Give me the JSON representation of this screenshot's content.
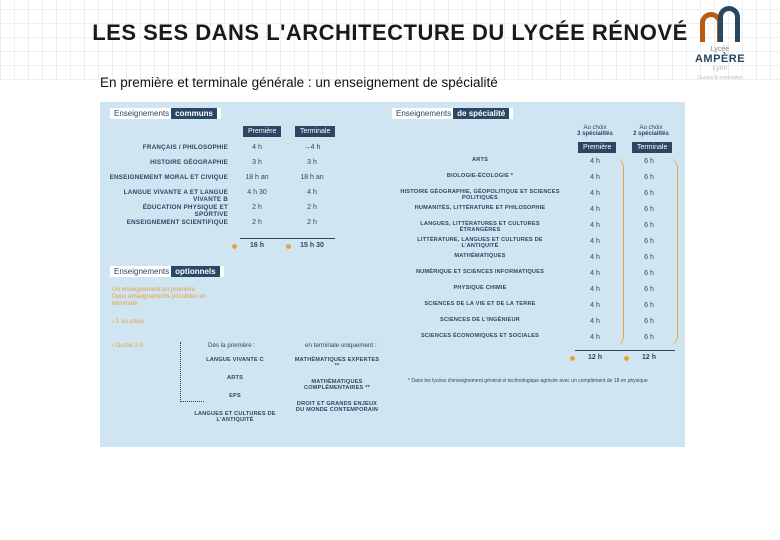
{
  "title": "LES SES DANS L'ARCHITECTURE DU LYCÉE RÉNOVÉ",
  "subtitle": "En première et terminale générale : un enseignement de spécialité",
  "logo": {
    "line1": "Lycée",
    "line2": "AMPÈRE",
    "line3": "Lyon",
    "line4": "Cursus & Innovation"
  },
  "labels": {
    "communs_a": "Enseignements",
    "communs_b": "communs",
    "spec_a": "Enseignements",
    "spec_b": "de spécialité",
    "opt_a": "Enseignements",
    "opt_b": "optionnels",
    "premiere": "Première",
    "terminale": "Terminale",
    "spec_head1a": "Au choix",
    "spec_head1b": "3 spécialités",
    "spec_head2a": "Au choix",
    "spec_head2b": "2 spécialités"
  },
  "communs": {
    "rows": [
      "FRANÇAIS / PHILOSOPHIE",
      "HISTOIRE GÉOGRAPHIE",
      "ENSEIGNEMENT MORAL ET CIVIQUE",
      "LANGUE VIVANTE A ET LANGUE VIVANTE B",
      "ÉDUCATION PHYSIQUE ET SPORTIVE",
      "ENSEIGNEMENT SCIENTIFIQUE"
    ],
    "prem": [
      "4 h",
      "3 h",
      "18 h an",
      "4 h 30",
      "2 h",
      "2 h"
    ],
    "term": [
      "→4 h",
      "3 h",
      "18 h an",
      "4 h",
      "2 h",
      "2 h"
    ],
    "tot_p": "16 h",
    "tot_t": "15 h 30"
  },
  "spec": {
    "rows": [
      "ARTS",
      "BIOLOGIE-ÉCOLOGIE *",
      "HISTOIRE GÉOGRAPHIE, GÉOPOLITIQUE ET SCIENCES POLITIQUES",
      "HUMANITÉS, LITTÉRATURE ET PHILOSOPHIE",
      "LANGUES, LITTÉRATURES ET CULTURES ÉTRANGÈRES",
      "LITTÉRATURE, LANGUES ET CULTURES DE L'ANTIQUITÉ",
      "MATHÉMATIQUES",
      "NUMÉRIQUE ET SCIENCES INFORMATIQUES",
      "PHYSIQUE CHIMIE",
      "SCIENCES DE LA VIE ET DE LA TERRE",
      "SCIENCES DE L'INGÉNIEUR",
      "SCIENCES ÉCONOMIQUES ET SOCIALES"
    ],
    "p": "4 h",
    "t": "6 h",
    "tot_p": "12 h",
    "tot_t": "12 h"
  },
  "opt": {
    "intro1": "Un enseignement en première",
    "intro2": "Deux enseignements possibles en terminale",
    "line1": "1 au choix",
    "line2": "Durée 3 h",
    "head1": "Dès la première :",
    "head2": "en terminale uniquement :",
    "col1": [
      "LANGUE VIVANTE C",
      "ARTS",
      "EPS",
      "LANGUES ET CULTURES DE L'ANTIQUITÉ"
    ],
    "col2": [
      "MATHÉMATIQUES EXPERTES **",
      "MATHÉMATIQUES COMPLÉMENTAIRES **",
      "DROIT ET GRANDS ENJEUX DU MONDE CONTEMPORAIN"
    ]
  },
  "footnote": "* Dans les lycées d'enseignement général et technologique agricole avec un complément de 18 en physique"
}
